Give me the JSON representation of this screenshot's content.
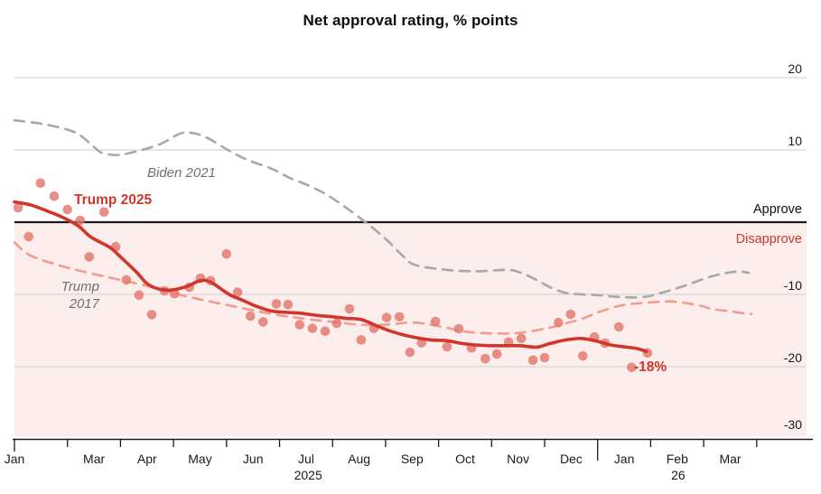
{
  "title": "Net approval rating, % points",
  "colors": {
    "red": "#d2352c",
    "dot": "#e2746a",
    "pink_dashed": "#f29b8e",
    "gray_dashed": "#a8a8a8",
    "pink_bg": "#fbeeec",
    "gridline": "#d9d7d4",
    "dark": "#1a1a1a",
    "muted": "#6f7073"
  },
  "annotations": {
    "trump2025": "Trump 2025",
    "biden2021": "Biden 2021",
    "trump2017_lines": [
      "Trump",
      "2017"
    ],
    "approve": "Approve",
    "disapprove": "Disapprove",
    "latest": "-18%"
  },
  "chart_data": {
    "type": "line",
    "title": "Net approval rating, % points",
    "ylim": [
      -30,
      20
    ],
    "y_ticks": [
      20,
      10,
      -10,
      -20,
      -30
    ],
    "y_gridlines": [
      20,
      10,
      -10,
      -20
    ],
    "zero_line": 0,
    "x_unit": "month ticks along axis; tick 0 = Jan 2025 start, tick 11 = Jan 2026 (tall year tick), tick 14 = axis end",
    "x_ticks": {
      "positions": [
        0,
        1,
        2,
        3,
        4,
        5,
        6,
        7,
        8,
        9,
        10,
        11,
        12,
        13,
        14
      ],
      "tall": [
        0,
        11
      ]
    },
    "x_month_labels": [
      [
        "Jan",
        0
      ],
      [
        "Mar",
        1.5
      ],
      [
        "Apr",
        2.5
      ],
      [
        "May",
        3.5
      ],
      [
        "Jun",
        4.5
      ],
      [
        "Jul",
        5.5
      ],
      [
        "Aug",
        6.5
      ],
      [
        "Sep",
        7.5
      ],
      [
        "Oct",
        8.5
      ],
      [
        "Nov",
        9.5
      ],
      [
        "Dec",
        10.5
      ],
      [
        "Jan",
        11.5
      ],
      [
        "Feb",
        12.5
      ],
      [
        "Mar",
        13.5
      ]
    ],
    "x_year_labels": [
      [
        "2025",
        5.54
      ],
      [
        "26",
        12.52
      ]
    ],
    "series": [
      {
        "name": "Biden 2021",
        "type": "line",
        "style": "dashed",
        "color_key": "gray_dashed",
        "points": [
          [
            0,
            14.1
          ],
          [
            0.6,
            13.5
          ],
          [
            1.15,
            12.4
          ],
          [
            1.5,
            10.4
          ],
          [
            1.65,
            9.6
          ],
          [
            1.95,
            9.3
          ],
          [
            2.3,
            9.8
          ],
          [
            2.75,
            10.8
          ],
          [
            3.1,
            12.2
          ],
          [
            3.3,
            12.4
          ],
          [
            3.6,
            11.8
          ],
          [
            4.05,
            9.9
          ],
          [
            4.4,
            8.6
          ],
          [
            4.85,
            7.4
          ],
          [
            5.2,
            6.1
          ],
          [
            5.6,
            4.9
          ],
          [
            6.0,
            3.3
          ],
          [
            6.55,
            0.4
          ],
          [
            7.0,
            -2.3
          ],
          [
            7.3,
            -4.5
          ],
          [
            7.55,
            -5.9
          ],
          [
            8.15,
            -6.6
          ],
          [
            8.7,
            -6.8
          ],
          [
            9.3,
            -6.6
          ],
          [
            9.55,
            -7.0
          ],
          [
            9.85,
            -8.0
          ],
          [
            10.1,
            -9.0
          ],
          [
            10.4,
            -9.8
          ],
          [
            10.7,
            -10.0
          ],
          [
            11.0,
            -10.1
          ],
          [
            11.3,
            -10.3
          ],
          [
            11.55,
            -10.4
          ],
          [
            11.8,
            -10.4
          ],
          [
            12.05,
            -10.1
          ],
          [
            12.6,
            -8.9
          ],
          [
            13.15,
            -7.5
          ],
          [
            13.6,
            -6.85
          ],
          [
            13.85,
            -7.0
          ]
        ]
      },
      {
        "name": "Trump 2017",
        "type": "line",
        "style": "dashed",
        "color_key": "pink_dashed",
        "points": [
          [
            0,
            -2.8
          ],
          [
            0.3,
            -4.6
          ],
          [
            0.9,
            -6.1
          ],
          [
            1.45,
            -7.1
          ],
          [
            2.0,
            -8.0
          ],
          [
            2.6,
            -9.0
          ],
          [
            3.15,
            -10.1
          ],
          [
            3.7,
            -11.0
          ],
          [
            4.3,
            -11.9
          ],
          [
            4.85,
            -12.7
          ],
          [
            5.4,
            -13.3
          ],
          [
            6.0,
            -13.8
          ],
          [
            6.55,
            -14.2
          ],
          [
            7.1,
            -14.15
          ],
          [
            7.55,
            -13.9
          ],
          [
            8.15,
            -14.6
          ],
          [
            8.45,
            -15.1
          ],
          [
            9.0,
            -15.4
          ],
          [
            9.55,
            -15.3
          ],
          [
            10.1,
            -14.6
          ],
          [
            10.4,
            -14.0
          ],
          [
            10.7,
            -13.4
          ],
          [
            11.0,
            -12.5
          ],
          [
            11.3,
            -11.8
          ],
          [
            11.55,
            -11.4
          ],
          [
            12.1,
            -11.05
          ],
          [
            12.45,
            -11.0
          ],
          [
            12.9,
            -11.5
          ],
          [
            13.15,
            -12.0
          ],
          [
            13.45,
            -12.3
          ],
          [
            13.75,
            -12.6
          ],
          [
            13.9,
            -12.7
          ]
        ]
      },
      {
        "name": "Trump 2025 weekly polls",
        "type": "scatter",
        "color_key": "dot",
        "points": [
          [
            0.07,
            2.0
          ],
          [
            0.27,
            -2.0
          ],
          [
            0.49,
            5.4
          ],
          [
            0.75,
            3.6
          ],
          [
            1.0,
            1.75
          ],
          [
            1.24,
            0.25
          ],
          [
            1.41,
            -4.8
          ],
          [
            1.69,
            1.4
          ],
          [
            1.91,
            -3.4
          ],
          [
            2.11,
            -8.0
          ],
          [
            2.35,
            -10.1
          ],
          [
            2.59,
            -12.8
          ],
          [
            2.83,
            -9.5
          ],
          [
            3.02,
            -9.9
          ],
          [
            3.3,
            -9.0
          ],
          [
            3.51,
            -7.75
          ],
          [
            3.7,
            -8.1
          ],
          [
            4.0,
            -4.4
          ],
          [
            4.21,
            -9.7
          ],
          [
            4.45,
            -13.0
          ],
          [
            4.69,
            -13.8
          ],
          [
            4.94,
            -11.3
          ],
          [
            5.16,
            -11.4
          ],
          [
            5.38,
            -14.2
          ],
          [
            5.62,
            -14.7
          ],
          [
            5.86,
            -15.1
          ],
          [
            6.08,
            -14.0
          ],
          [
            6.32,
            -12.0
          ],
          [
            6.54,
            -16.3
          ],
          [
            6.78,
            -14.7
          ],
          [
            7.02,
            -13.2
          ],
          [
            7.26,
            -13.1
          ],
          [
            7.46,
            -18.0
          ],
          [
            7.68,
            -16.7
          ],
          [
            7.94,
            -13.75
          ],
          [
            8.16,
            -17.25
          ],
          [
            8.38,
            -14.75
          ],
          [
            8.62,
            -17.4
          ],
          [
            8.88,
            -18.9
          ],
          [
            9.1,
            -18.25
          ],
          [
            9.32,
            -16.6
          ],
          [
            9.56,
            -16.1
          ],
          [
            9.78,
            -19.1
          ],
          [
            10.0,
            -18.75
          ],
          [
            10.26,
            -13.9
          ],
          [
            10.49,
            -12.75
          ],
          [
            10.72,
            -18.5
          ],
          [
            10.94,
            -15.9
          ],
          [
            11.14,
            -16.75
          ],
          [
            11.4,
            -14.5
          ],
          [
            11.64,
            -20.1
          ],
          [
            11.94,
            -18.1
          ]
        ]
      },
      {
        "name": "Trump 2025",
        "type": "line",
        "style": "solid",
        "color_key": "red",
        "points": [
          [
            0,
            2.8
          ],
          [
            0.3,
            2.4
          ],
          [
            0.6,
            1.6
          ],
          [
            0.9,
            0.7
          ],
          [
            1.2,
            -0.5
          ],
          [
            1.45,
            -2.1
          ],
          [
            1.8,
            -3.5
          ],
          [
            2.0,
            -4.8
          ],
          [
            2.3,
            -6.9
          ],
          [
            2.5,
            -8.5
          ],
          [
            2.7,
            -9.2
          ],
          [
            2.95,
            -9.4
          ],
          [
            3.25,
            -8.9
          ],
          [
            3.5,
            -8.1
          ],
          [
            3.7,
            -8.3
          ],
          [
            4.05,
            -10.0
          ],
          [
            4.3,
            -10.8
          ],
          [
            4.55,
            -11.6
          ],
          [
            4.85,
            -12.3
          ],
          [
            5.15,
            -12.5
          ],
          [
            5.4,
            -12.6
          ],
          [
            5.7,
            -12.9
          ],
          [
            6.0,
            -13.1
          ],
          [
            6.25,
            -13.3
          ],
          [
            6.55,
            -13.5
          ],
          [
            6.85,
            -14.4
          ],
          [
            7.1,
            -15.1
          ],
          [
            7.45,
            -15.8
          ],
          [
            7.85,
            -16.3
          ],
          [
            8.15,
            -16.4
          ],
          [
            8.45,
            -16.8
          ],
          [
            8.7,
            -17.0
          ],
          [
            9.0,
            -17.1
          ],
          [
            9.3,
            -17.1
          ],
          [
            9.55,
            -17.1
          ],
          [
            9.85,
            -17.3
          ],
          [
            10.1,
            -16.8
          ],
          [
            10.4,
            -16.3
          ],
          [
            10.7,
            -16.1
          ],
          [
            11.0,
            -16.5
          ],
          [
            11.25,
            -17.0
          ],
          [
            11.55,
            -17.3
          ],
          [
            11.75,
            -17.5
          ],
          [
            11.92,
            -17.9
          ]
        ]
      }
    ],
    "end_label": {
      "text": "-18%",
      "series": "Trump 2025"
    },
    "zero_line_labels": {
      "above": "Approve",
      "below": "Disapprove"
    },
    "legend_position": "inline-annotations",
    "grid": true
  }
}
